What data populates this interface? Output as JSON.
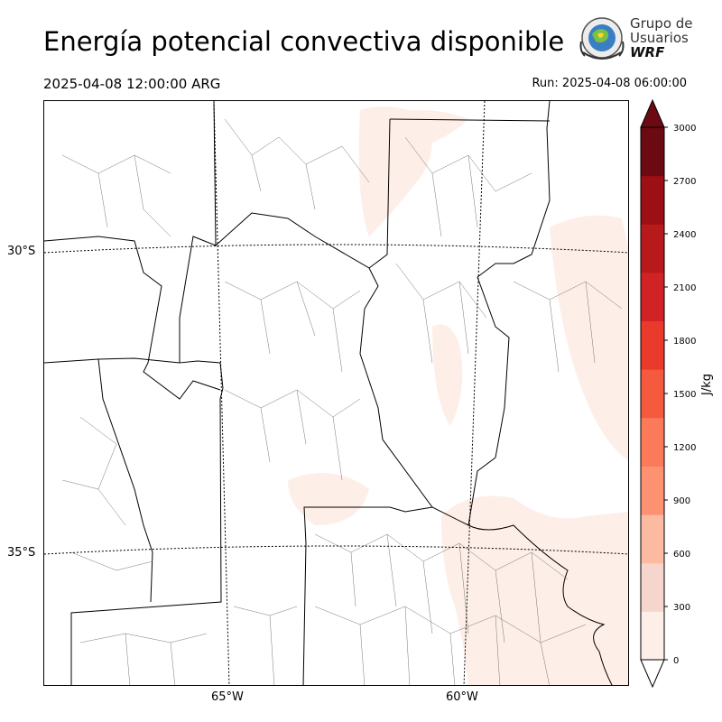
{
  "title": "Energía potencial convectiva disponible",
  "valid_time": "2025-04-08 12:00:00 ARG",
  "run_time": "Run: 2025-04-08 06:00:00",
  "logo": {
    "line1": "Grupo de",
    "line2": "Usuarios",
    "line3": "WRF"
  },
  "map": {
    "lat_labels": [
      "30°S",
      "35°S"
    ],
    "lon_labels": [
      "65°W",
      "60°W"
    ],
    "gridlines": true
  },
  "colorbar": {
    "unit": "J/kg",
    "ticks": [
      "0",
      "300",
      "600",
      "900",
      "1200",
      "1500",
      "1800",
      "2100",
      "2400",
      "2700",
      "3000"
    ],
    "colors": [
      "#fdeee8",
      "#f6d6cc",
      "#fcbba1",
      "#fc9272",
      "#fb7a5a",
      "#f55a3e",
      "#ea3a2c",
      "#d12326",
      "#b81a1c",
      "#9b0f15",
      "#6b0a12"
    ],
    "extend": "both",
    "extend_low_color": "#ffffff",
    "extend_high_color": "#6b0a12"
  }
}
